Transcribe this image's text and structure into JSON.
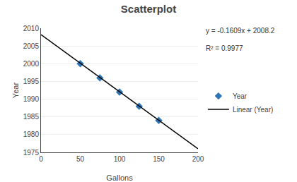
{
  "chart_data": {
    "type": "scatter",
    "title": "Scatterplot",
    "xlabel": "Gallons",
    "ylabel": "Year",
    "annotations": [
      "y = -0.1609x + 2008.2",
      "R² = 0.9977"
    ],
    "series": [
      {
        "name": "Year",
        "type": "scatter",
        "color": "#2E75B6",
        "marker": "diamond",
        "x": [
          50,
          75,
          100,
          125,
          150
        ],
        "values": [
          2000,
          1996,
          1992,
          1988,
          1984
        ]
      },
      {
        "name": "Linear (Year)",
        "type": "line",
        "color": "black",
        "line_style": "solid",
        "x": [
          0,
          200
        ],
        "values": [
          2008.2,
          1976.02
        ]
      }
    ],
    "xlim": [
      0,
      200
    ],
    "xticks": [
      0,
      50,
      100,
      150,
      200
    ],
    "ylim": [
      1975,
      2010
    ],
    "yticks": [
      1975,
      1980,
      1985,
      1990,
      1995,
      2000,
      2005,
      2010
    ],
    "grid": "y",
    "legend": "right"
  }
}
